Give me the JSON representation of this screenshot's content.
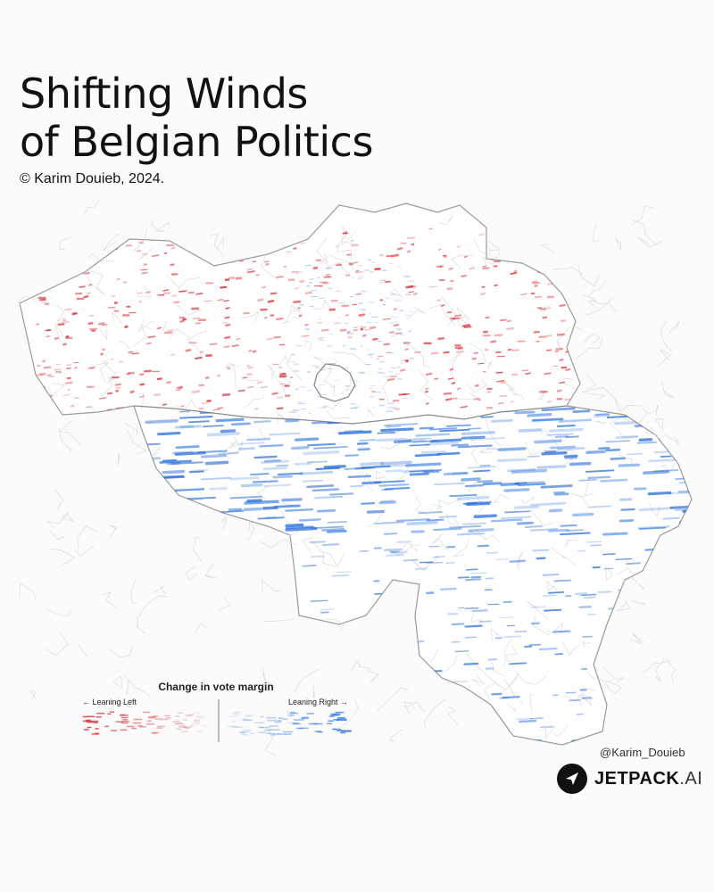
{
  "title_line1": "Shifting Winds",
  "title_line2": "of Belgian Politics",
  "credit": "© Karim Douieb, 2024.",
  "legend": {
    "title": "Change in vote margin",
    "left_label": "← Leaning Left",
    "right_label": "Leaning Right →",
    "left_color": "#d9262e",
    "right_color": "#2a6fdb"
  },
  "handle": "@Karim_Douieb",
  "brand": {
    "name": "JETPACK",
    "suffix": ".AI"
  },
  "colors": {
    "background": "#fbfbfb",
    "border": "#9a9a9a",
    "left": "#d9262e",
    "right": "#2a6fdb"
  }
}
